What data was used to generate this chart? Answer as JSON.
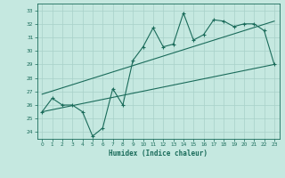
{
  "title": "",
  "xlabel": "Humidex (Indice chaleur)",
  "bg_color": "#c5e8e0",
  "line_color": "#1a6b5a",
  "grid_color": "#a8d0c8",
  "xlim": [
    -0.5,
    23.5
  ],
  "ylim": [
    23.5,
    33.5
  ],
  "xticks": [
    0,
    1,
    2,
    3,
    4,
    5,
    6,
    7,
    8,
    9,
    10,
    11,
    12,
    13,
    14,
    15,
    16,
    17,
    18,
    19,
    20,
    21,
    22,
    23
  ],
  "yticks": [
    24,
    25,
    26,
    27,
    28,
    29,
    30,
    31,
    32,
    33
  ],
  "line1_x": [
    0,
    1,
    2,
    3,
    4,
    5,
    6,
    7,
    8,
    9,
    10,
    11,
    12,
    13,
    14,
    15,
    16,
    17,
    18,
    19,
    20,
    21,
    22,
    23
  ],
  "line1_y": [
    25.5,
    26.5,
    26.0,
    26.0,
    25.5,
    23.7,
    24.3,
    27.2,
    26.0,
    29.3,
    30.3,
    31.7,
    30.3,
    30.5,
    32.8,
    30.8,
    31.2,
    32.3,
    32.2,
    31.8,
    32.0,
    32.0,
    31.5,
    29.0
  ],
  "line2_x": [
    0,
    23
  ],
  "line2_y": [
    25.5,
    29.0
  ],
  "line3_x": [
    0,
    23
  ],
  "line3_y": [
    26.8,
    32.2
  ]
}
